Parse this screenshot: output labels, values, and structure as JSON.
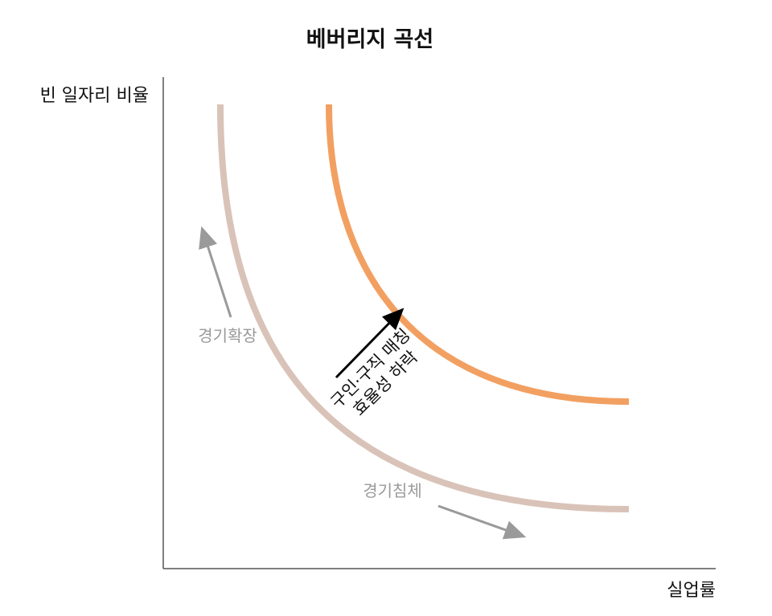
{
  "title": "베버리지 곡선",
  "axes": {
    "y_label": "빈 일자리 비율",
    "x_label": "실업률"
  },
  "curves": [
    {
      "name": "original-curve",
      "color": "#d9c3b8"
    },
    {
      "name": "shifted-curve",
      "color": "#f2a061"
    }
  ],
  "annotations": {
    "expansion": "경기확장",
    "recession": "경기침체",
    "shift_line1": "구인·구직 매칭",
    "shift_line2": "효율성 하락"
  },
  "colors": {
    "axis": "#555555",
    "annotation_arrow": "#9a9a9a",
    "shift_arrow": "#000000"
  }
}
